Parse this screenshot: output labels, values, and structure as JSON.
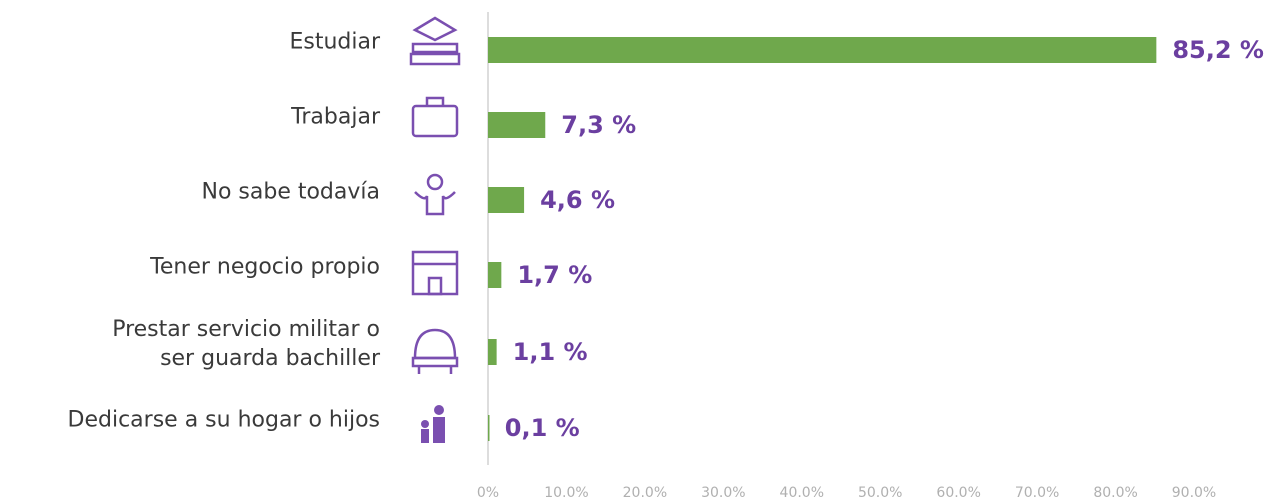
{
  "chart_data": {
    "type": "hbar",
    "categories": [
      "Estudiar",
      "Trabajar",
      "No sabe todavía",
      "Tener negocio propio",
      "Prestar servicio militar o\nser guarda bachiller",
      "Dedicarse a su hogar o hijos"
    ],
    "values": [
      85.2,
      7.3,
      4.6,
      1.7,
      1.1,
      0.1
    ],
    "value_labels": [
      "85,2 %",
      "7,3 %",
      "4,6 %",
      "1,7 %",
      "1,1 %",
      "0,1 %"
    ],
    "color": "#6fa84c",
    "xlim": [
      0,
      90
    ],
    "xticks": [
      {
        "value": 0,
        "label": "0%"
      },
      {
        "value": 10,
        "label": "10.0%"
      },
      {
        "value": 20,
        "label": "20.0%"
      },
      {
        "value": 30,
        "label": "30.0%"
      },
      {
        "value": 40,
        "label": "40.0%"
      },
      {
        "value": 50,
        "label": "50.0%"
      },
      {
        "value": 60,
        "label": "60.0%"
      },
      {
        "value": 70,
        "label": "70.0%"
      },
      {
        "value": 80,
        "label": "80.0%"
      },
      {
        "value": 90,
        "label": "90.0%"
      }
    ]
  }
}
